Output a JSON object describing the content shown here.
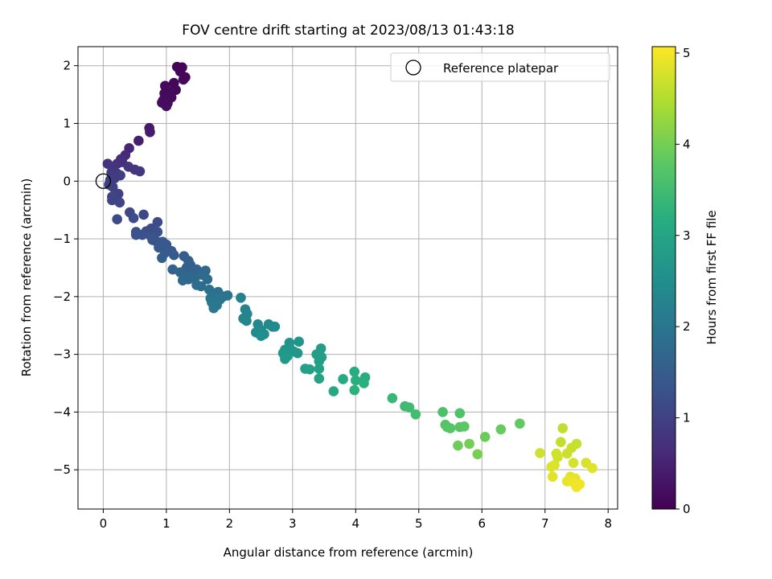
{
  "chart_data": {
    "type": "scatter",
    "title": "FOV centre drift starting at 2023/08/13 01:43:18",
    "xlabel": "Angular distance from reference (arcmin)",
    "ylabel": "Rotation from reference (arcmin)",
    "xlim": [
      -0.4,
      8.15
    ],
    "ylim": [
      -5.68,
      2.33
    ],
    "xticks": [
      "0",
      "1",
      "2",
      "3",
      "4",
      "5",
      "6",
      "7",
      "8"
    ],
    "yticks": [
      "−5",
      "−4",
      "−3",
      "−2",
      "−1",
      "0",
      "1",
      "2"
    ],
    "grid": true,
    "legend": {
      "position": "top-right",
      "entries": [
        "Reference platepar"
      ]
    },
    "reference_point": {
      "x": 0,
      "y": 0
    },
    "colorbar": {
      "label": "Hours from first FF file",
      "range": [
        0,
        5.07
      ],
      "ticks": [
        "0",
        "1",
        "2",
        "3",
        "4",
        "5"
      ],
      "colormap": "viridis"
    },
    "points": [
      {
        "x": 1.17,
        "y": 1.98,
        "h": 0.05
      },
      {
        "x": 1.25,
        "y": 1.97,
        "h": 0.06
      },
      {
        "x": 1.22,
        "y": 1.9,
        "h": 0.07
      },
      {
        "x": 1.3,
        "y": 1.8,
        "h": 0.08
      },
      {
        "x": 1.27,
        "y": 1.76,
        "h": 0.09
      },
      {
        "x": 1.12,
        "y": 1.7,
        "h": 0.1
      },
      {
        "x": 0.98,
        "y": 1.65,
        "h": 0.11
      },
      {
        "x": 1.15,
        "y": 1.58,
        "h": 0.12
      },
      {
        "x": 1.05,
        "y": 1.55,
        "h": 0.13
      },
      {
        "x": 0.97,
        "y": 1.52,
        "h": 0.14
      },
      {
        "x": 1.08,
        "y": 1.45,
        "h": 0.15
      },
      {
        "x": 0.95,
        "y": 1.4,
        "h": 0.16
      },
      {
        "x": 1.02,
        "y": 1.35,
        "h": 0.17
      },
      {
        "x": 0.93,
        "y": 1.36,
        "h": 0.18
      },
      {
        "x": 1.0,
        "y": 1.3,
        "h": 0.19
      },
      {
        "x": 0.73,
        "y": 0.92,
        "h": 0.35
      },
      {
        "x": 0.74,
        "y": 0.85,
        "h": 0.38
      },
      {
        "x": 0.56,
        "y": 0.7,
        "h": 0.45
      },
      {
        "x": 0.41,
        "y": 0.57,
        "h": 0.55
      },
      {
        "x": 0.35,
        "y": 0.45,
        "h": 0.6
      },
      {
        "x": 0.28,
        "y": 0.38,
        "h": 0.65
      },
      {
        "x": 0.3,
        "y": 0.33,
        "h": 0.7
      },
      {
        "x": 0.22,
        "y": 0.3,
        "h": 0.72
      },
      {
        "x": 0.07,
        "y": 0.3,
        "h": 0.75
      },
      {
        "x": 0.4,
        "y": 0.25,
        "h": 0.78
      },
      {
        "x": 0.16,
        "y": 0.24,
        "h": 0.8
      },
      {
        "x": 0.5,
        "y": 0.2,
        "h": 0.82
      },
      {
        "x": 0.58,
        "y": 0.17,
        "h": 0.84
      },
      {
        "x": 0.13,
        "y": 0.15,
        "h": 0.86
      },
      {
        "x": 0.22,
        "y": 0.13,
        "h": 0.88
      },
      {
        "x": 0.27,
        "y": 0.1,
        "h": 0.9
      },
      {
        "x": 0.18,
        "y": 0.05,
        "h": 0.92
      },
      {
        "x": 0.11,
        "y": 0.02,
        "h": 0.94
      },
      {
        "x": 0.09,
        "y": -0.06,
        "h": 0.96
      },
      {
        "x": 0.15,
        "y": -0.1,
        "h": 0.98
      },
      {
        "x": 0.24,
        "y": -0.22,
        "h": 1.0
      },
      {
        "x": 0.14,
        "y": -0.27,
        "h": 1.02
      },
      {
        "x": 0.14,
        "y": -0.33,
        "h": 1.04
      },
      {
        "x": 0.26,
        "y": -0.37,
        "h": 1.06
      },
      {
        "x": 0.42,
        "y": -0.54,
        "h": 1.1
      },
      {
        "x": 0.64,
        "y": -0.58,
        "h": 1.12
      },
      {
        "x": 0.22,
        "y": -0.66,
        "h": 1.14
      },
      {
        "x": 0.48,
        "y": -0.64,
        "h": 1.16
      },
      {
        "x": 0.86,
        "y": -0.71,
        "h": 1.18
      },
      {
        "x": 0.76,
        "y": -0.82,
        "h": 1.2
      },
      {
        "x": 0.52,
        "y": -0.88,
        "h": 1.22
      },
      {
        "x": 0.68,
        "y": -0.87,
        "h": 1.24
      },
      {
        "x": 0.86,
        "y": -0.88,
        "h": 1.26
      },
      {
        "x": 0.52,
        "y": -0.93,
        "h": 1.28
      },
      {
        "x": 0.62,
        "y": -0.93,
        "h": 1.3
      },
      {
        "x": 0.76,
        "y": -0.96,
        "h": 1.32
      },
      {
        "x": 0.78,
        "y": -1.02,
        "h": 1.34
      },
      {
        "x": 0.85,
        "y": -1.05,
        "h": 1.36
      },
      {
        "x": 0.94,
        "y": -1.05,
        "h": 1.38
      },
      {
        "x": 1.0,
        "y": -1.1,
        "h": 1.4
      },
      {
        "x": 0.88,
        "y": -1.15,
        "h": 1.42
      },
      {
        "x": 1.08,
        "y": -1.21,
        "h": 1.44
      },
      {
        "x": 0.98,
        "y": -1.24,
        "h": 1.46
      },
      {
        "x": 1.12,
        "y": -1.28,
        "h": 1.48
      },
      {
        "x": 0.93,
        "y": -1.33,
        "h": 1.5
      },
      {
        "x": 1.28,
        "y": -1.3,
        "h": 1.52
      },
      {
        "x": 1.35,
        "y": -1.38,
        "h": 1.54
      },
      {
        "x": 1.38,
        "y": -1.45,
        "h": 1.56
      },
      {
        "x": 1.32,
        "y": -1.5,
        "h": 1.58
      },
      {
        "x": 1.1,
        "y": -1.53,
        "h": 1.6
      },
      {
        "x": 1.48,
        "y": -1.53,
        "h": 1.62
      },
      {
        "x": 1.22,
        "y": -1.58,
        "h": 1.64
      },
      {
        "x": 1.4,
        "y": -1.62,
        "h": 1.66
      },
      {
        "x": 1.3,
        "y": -1.65,
        "h": 1.68
      },
      {
        "x": 1.45,
        "y": -1.68,
        "h": 1.7
      },
      {
        "x": 1.35,
        "y": -1.7,
        "h": 1.72
      },
      {
        "x": 1.26,
        "y": -1.72,
        "h": 1.74
      },
      {
        "x": 1.62,
        "y": -1.55,
        "h": 1.76
      },
      {
        "x": 1.56,
        "y": -1.62,
        "h": 1.78
      },
      {
        "x": 1.65,
        "y": -1.7,
        "h": 1.8
      },
      {
        "x": 1.55,
        "y": -1.82,
        "h": 1.82
      },
      {
        "x": 1.48,
        "y": -1.8,
        "h": 1.84
      },
      {
        "x": 1.68,
        "y": -1.88,
        "h": 1.86
      },
      {
        "x": 1.82,
        "y": -1.92,
        "h": 1.88
      },
      {
        "x": 1.78,
        "y": -1.98,
        "h": 1.9
      },
      {
        "x": 1.9,
        "y": -2.0,
        "h": 1.92
      },
      {
        "x": 1.97,
        "y": -1.98,
        "h": 1.94
      },
      {
        "x": 1.7,
        "y": -2.03,
        "h": 1.96
      },
      {
        "x": 1.85,
        "y": -2.05,
        "h": 1.98
      },
      {
        "x": 1.72,
        "y": -2.1,
        "h": 2.0
      },
      {
        "x": 1.8,
        "y": -2.15,
        "h": 2.02
      },
      {
        "x": 1.75,
        "y": -2.2,
        "h": 2.04
      },
      {
        "x": 2.18,
        "y": -2.02,
        "h": 2.2
      },
      {
        "x": 2.25,
        "y": -2.22,
        "h": 2.25
      },
      {
        "x": 2.28,
        "y": -2.3,
        "h": 2.28
      },
      {
        "x": 2.22,
        "y": -2.38,
        "h": 2.3
      },
      {
        "x": 2.27,
        "y": -2.42,
        "h": 2.32
      },
      {
        "x": 2.45,
        "y": -2.48,
        "h": 2.36
      },
      {
        "x": 2.62,
        "y": -2.48,
        "h": 2.38
      },
      {
        "x": 2.68,
        "y": -2.52,
        "h": 2.4
      },
      {
        "x": 2.72,
        "y": -2.52,
        "h": 2.42
      },
      {
        "x": 2.5,
        "y": -2.58,
        "h": 2.44
      },
      {
        "x": 2.42,
        "y": -2.62,
        "h": 2.46
      },
      {
        "x": 2.55,
        "y": -2.65,
        "h": 2.48
      },
      {
        "x": 2.5,
        "y": -2.68,
        "h": 2.5
      },
      {
        "x": 2.95,
        "y": -2.8,
        "h": 2.6
      },
      {
        "x": 3.1,
        "y": -2.78,
        "h": 2.62
      },
      {
        "x": 2.95,
        "y": -2.88,
        "h": 2.64
      },
      {
        "x": 2.88,
        "y": -2.92,
        "h": 2.66
      },
      {
        "x": 3.02,
        "y": -2.95,
        "h": 2.68
      },
      {
        "x": 3.08,
        "y": -2.98,
        "h": 2.7
      },
      {
        "x": 2.85,
        "y": -2.98,
        "h": 2.72
      },
      {
        "x": 2.92,
        "y": -3.03,
        "h": 2.74
      },
      {
        "x": 2.88,
        "y": -3.08,
        "h": 2.76
      },
      {
        "x": 3.45,
        "y": -2.9,
        "h": 2.8
      },
      {
        "x": 3.38,
        "y": -3.0,
        "h": 2.82
      },
      {
        "x": 3.46,
        "y": -3.05,
        "h": 2.84
      },
      {
        "x": 3.42,
        "y": -3.12,
        "h": 2.86
      },
      {
        "x": 3.2,
        "y": -3.25,
        "h": 2.88
      },
      {
        "x": 3.27,
        "y": -3.26,
        "h": 2.9
      },
      {
        "x": 3.42,
        "y": -3.25,
        "h": 2.92
      },
      {
        "x": 3.42,
        "y": -3.42,
        "h": 2.96
      },
      {
        "x": 3.65,
        "y": -3.64,
        "h": 3.05
      },
      {
        "x": 3.8,
        "y": -3.43,
        "h": 3.1
      },
      {
        "x": 3.98,
        "y": -3.3,
        "h": 3.15
      },
      {
        "x": 4.15,
        "y": -3.4,
        "h": 3.18
      },
      {
        "x": 4.0,
        "y": -3.45,
        "h": 3.2
      },
      {
        "x": 4.13,
        "y": -3.5,
        "h": 3.22
      },
      {
        "x": 3.98,
        "y": -3.62,
        "h": 3.25
      },
      {
        "x": 4.58,
        "y": -3.76,
        "h": 3.4
      },
      {
        "x": 4.78,
        "y": -3.9,
        "h": 3.45
      },
      {
        "x": 4.85,
        "y": -3.92,
        "h": 3.48
      },
      {
        "x": 4.95,
        "y": -4.04,
        "h": 3.52
      },
      {
        "x": 5.38,
        "y": -4.0,
        "h": 3.62
      },
      {
        "x": 5.65,
        "y": -4.02,
        "h": 3.66
      },
      {
        "x": 5.42,
        "y": -4.22,
        "h": 3.7
      },
      {
        "x": 5.45,
        "y": -4.26,
        "h": 3.72
      },
      {
        "x": 5.5,
        "y": -4.28,
        "h": 3.74
      },
      {
        "x": 5.65,
        "y": -4.26,
        "h": 3.76
      },
      {
        "x": 5.72,
        "y": -4.25,
        "h": 3.78
      },
      {
        "x": 6.6,
        "y": -4.2,
        "h": 3.85
      },
      {
        "x": 6.3,
        "y": -4.3,
        "h": 3.88
      },
      {
        "x": 6.05,
        "y": -4.43,
        "h": 3.92
      },
      {
        "x": 5.62,
        "y": -4.58,
        "h": 3.95
      },
      {
        "x": 5.8,
        "y": -4.55,
        "h": 3.98
      },
      {
        "x": 5.93,
        "y": -4.73,
        "h": 4.02
      },
      {
        "x": 7.28,
        "y": -4.28,
        "h": 4.6
      },
      {
        "x": 7.25,
        "y": -4.52,
        "h": 4.62
      },
      {
        "x": 7.5,
        "y": -4.55,
        "h": 4.64
      },
      {
        "x": 7.42,
        "y": -4.62,
        "h": 4.66
      },
      {
        "x": 7.35,
        "y": -4.72,
        "h": 4.68
      },
      {
        "x": 7.18,
        "y": -4.72,
        "h": 4.7
      },
      {
        "x": 6.92,
        "y": -4.71,
        "h": 4.72
      },
      {
        "x": 7.2,
        "y": -4.78,
        "h": 4.74
      },
      {
        "x": 7.45,
        "y": -4.88,
        "h": 4.76
      },
      {
        "x": 7.65,
        "y": -4.88,
        "h": 4.78
      },
      {
        "x": 7.15,
        "y": -4.92,
        "h": 4.8
      },
      {
        "x": 7.1,
        "y": -4.95,
        "h": 4.82
      },
      {
        "x": 7.75,
        "y": -4.97,
        "h": 4.84
      },
      {
        "x": 7.12,
        "y": -5.12,
        "h": 4.86
      },
      {
        "x": 7.4,
        "y": -5.12,
        "h": 4.88
      },
      {
        "x": 7.48,
        "y": -5.15,
        "h": 4.9
      },
      {
        "x": 7.35,
        "y": -5.2,
        "h": 4.92
      },
      {
        "x": 7.45,
        "y": -5.22,
        "h": 4.94
      },
      {
        "x": 7.55,
        "y": -5.25,
        "h": 4.96
      },
      {
        "x": 7.5,
        "y": -5.3,
        "h": 4.98
      }
    ]
  }
}
